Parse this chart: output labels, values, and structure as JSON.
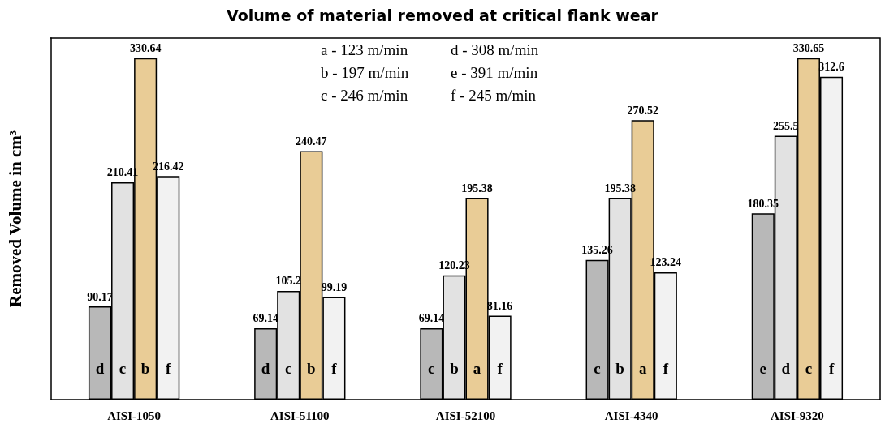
{
  "chart_data": {
    "type": "bar",
    "title": "Volume of material removed at critical flank wear",
    "ylabel": "Removed Volume in cm³",
    "categories": [
      "AISI-1050",
      "AISI-51100",
      "AISI-52100",
      "AISI-4340",
      "AISI-9320"
    ],
    "series": [
      {
        "color": "#b8b8b8",
        "values": [
          90.17,
          69.14,
          69.14,
          135.26,
          180.35
        ]
      },
      {
        "color": "#e2e2e2",
        "values": [
          210.41,
          105.2,
          120.23,
          195.38,
          255.5
        ]
      },
      {
        "color": "#e9cc96",
        "values": [
          330.64,
          240.47,
          195.38,
          270.52,
          330.65
        ]
      },
      {
        "color": "#f2f2f2",
        "values": [
          216.42,
          99.19,
          81.16,
          123.24,
          312.6
        ]
      }
    ],
    "data_labels": true,
    "grid": false,
    "annotations": [
      "a - 123 m/min",
      "d - 308 m/min",
      "b - 197 m/min",
      "e - 391 m/min",
      "c - 246 m/min",
      "f - 245 m/min",
      {
        "text": "d",
        "x": "AISI-1050",
        "y": 30
      },
      {
        "text": "c",
        "x": "AISI-1050",
        "y": 30
      },
      {
        "text": "b",
        "x": "AISI-1050",
        "y": 30
      },
      {
        "text": "f",
        "x": "AISI-1050",
        "y": 30
      },
      {
        "text": "d",
        "x": "AISI-51100",
        "y": 30
      },
      {
        "text": "c",
        "x": "AISI-51100",
        "y": 30
      },
      {
        "text": "b",
        "x": "AISI-51100",
        "y": 30
      },
      {
        "text": "f",
        "x": "AISI-51100",
        "y": 30
      },
      {
        "text": "c",
        "x": "AISI-52100",
        "y": 30
      },
      {
        "text": "b",
        "x": "AISI-52100",
        "y": 30
      },
      {
        "text": "a",
        "x": "AISI-52100",
        "y": 30
      },
      {
        "text": "f",
        "x": "AISI-52100",
        "y": 30
      },
      {
        "text": "c",
        "x": "AISI-4340",
        "y": 30
      },
      {
        "text": "b",
        "x": "AISI-4340",
        "y": 30
      },
      {
        "text": "a",
        "x": "AISI-4340",
        "y": 30
      },
      {
        "text": "f",
        "x": "AISI-4340",
        "y": 30
      },
      {
        "text": "e",
        "x": "AISI-9320",
        "y": 30
      },
      {
        "text": "d",
        "x": "AISI-9320",
        "y": 30
      },
      {
        "text": "c",
        "x": "AISI-9320",
        "y": 30
      },
      {
        "text": "f",
        "x": "AISI-9320",
        "y": 30
      }
    ]
  }
}
